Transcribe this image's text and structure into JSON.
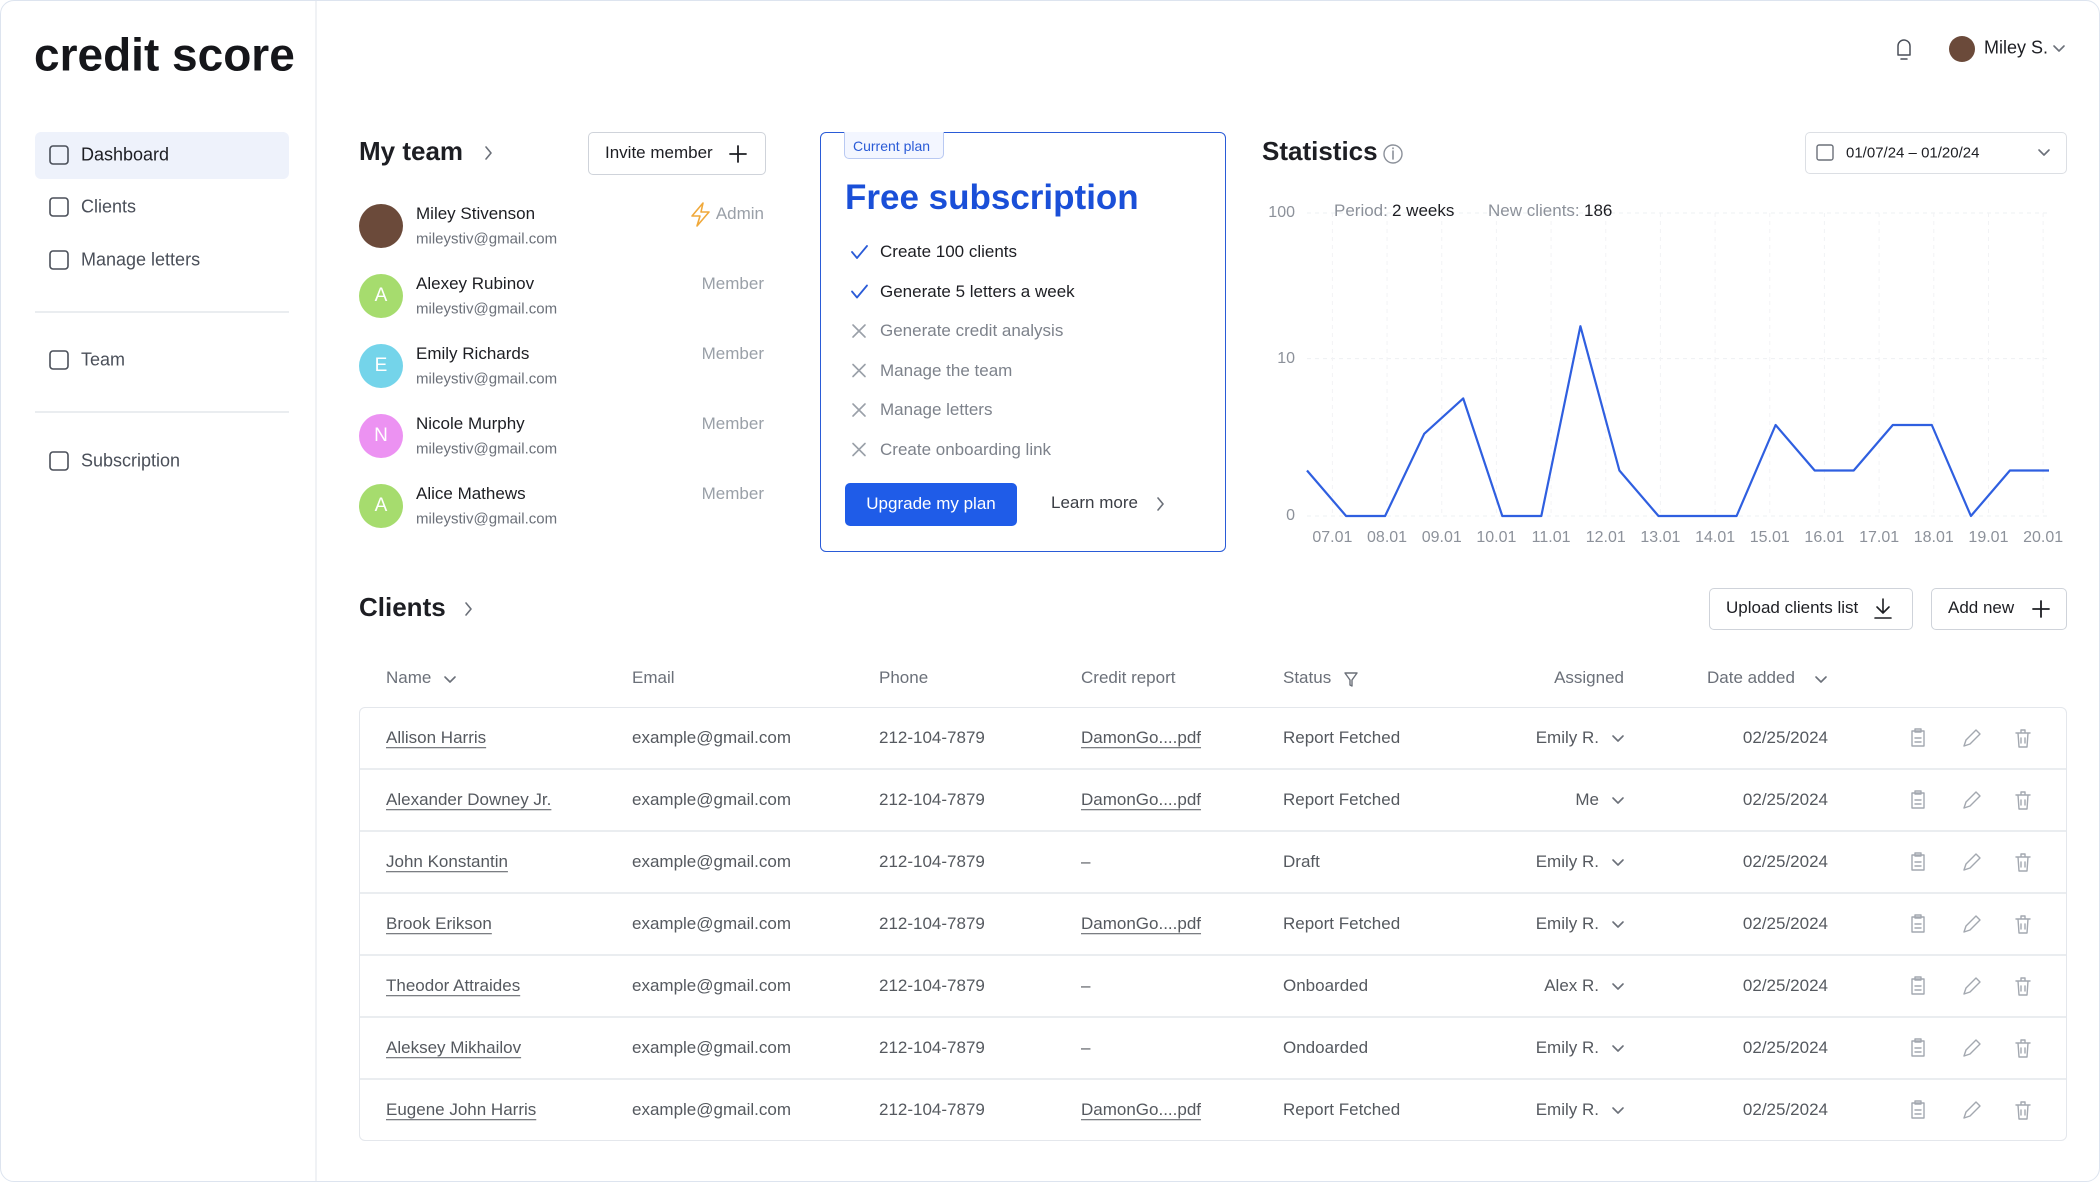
{
  "sidebar": {
    "logo": "credit score",
    "nav": [
      "Dashboard",
      "Clients",
      "Manage letters",
      "Team",
      "Subscription"
    ],
    "active": 0
  },
  "header": {
    "user": "Miley S."
  },
  "team": {
    "title": "My team",
    "invite": "Invite member",
    "members": [
      {
        "name": "Miley Stivenson",
        "email": "mileystiv@gmail.com",
        "role": "Admin",
        "avatar_color": "#6b4a3a"
      },
      {
        "name": "Alexey Rubinov",
        "email": "mileystiv@gmail.com",
        "role": "Member",
        "initial": "A",
        "avatar_color": "#a6dc6e"
      },
      {
        "name": "Emily Richards",
        "email": "mileystiv@gmail.com",
        "role": "Member",
        "initial": "E",
        "avatar_color": "#74d4ea"
      },
      {
        "name": "Nicole Murphy",
        "email": "mileystiv@gmail.com",
        "role": "Member",
        "initial": "N",
        "avatar_color": "#ec92f2"
      },
      {
        "name": "Alice Mathews",
        "email": "mileystiv@gmail.com",
        "role": "Member",
        "initial": "A",
        "avatar_color": "#a6dc6e"
      }
    ]
  },
  "plan": {
    "tag": "Current plan",
    "title": "Free subscription",
    "features": [
      {
        "text": "Create 100 clients",
        "included": true
      },
      {
        "text": "Generate 5 letters a week",
        "included": true
      },
      {
        "text": "Generate credit analysis",
        "included": false
      },
      {
        "text": "Manage the team",
        "included": false
      },
      {
        "text": "Manage letters",
        "included": false
      },
      {
        "text": "Create onboarding link",
        "included": false
      }
    ],
    "upgrade": "Upgrade my plan",
    "learn_more": "Learn more"
  },
  "chart_data": {
    "type": "line",
    "title": "Statistics",
    "date_range": "01/07/24 – 01/20/24",
    "period_label": "Period:",
    "period_value": "2 weeks",
    "new_clients_label": "New clients:",
    "new_clients_value": 186,
    "x": [
      0,
      1,
      2,
      3,
      4,
      5,
      6,
      7,
      8,
      9,
      10,
      11,
      12,
      13,
      14,
      15,
      16,
      17,
      18,
      19
    ],
    "values": [
      1,
      0,
      0,
      2.5,
      5,
      0,
      0,
      17,
      1,
      0,
      0,
      0,
      3,
      1,
      1,
      3,
      3,
      0,
      1,
      1
    ],
    "color": "#2f5fe0",
    "xlim": [
      0,
      19
    ],
    "xticks": [
      {
        "value": 0.65,
        "label": "07.01"
      },
      {
        "value": 2.05,
        "label": "08.01"
      },
      {
        "value": 3.45,
        "label": "09.01"
      },
      {
        "value": 4.85,
        "label": "10.01"
      },
      {
        "value": 6.25,
        "label": "11.01"
      },
      {
        "value": 7.65,
        "label": "12.01"
      },
      {
        "value": 9.05,
        "label": "13.01"
      },
      {
        "value": 10.45,
        "label": "14.01"
      },
      {
        "value": 11.85,
        "label": "15.01"
      },
      {
        "value": 13.25,
        "label": "16.01"
      },
      {
        "value": 14.65,
        "label": "17.01"
      },
      {
        "value": 16.05,
        "label": "18.01"
      },
      {
        "value": 17.45,
        "label": "19.01"
      },
      {
        "value": 18.85,
        "label": "20.01"
      }
    ],
    "ylim": [
      0,
      100
    ],
    "yticks": [
      0,
      10,
      100
    ],
    "yscale": "symlog",
    "grid": true
  },
  "clients": {
    "title": "Clients",
    "upload": "Upload clients list",
    "add": "Add new",
    "columns": [
      "Name",
      "Email",
      "Phone",
      "Credit report",
      "Status",
      "Assigned",
      "Date added"
    ],
    "rows": [
      [
        "Allison Harris",
        "example@gmail.com",
        "212-104-7879",
        "DamonGo....pdf",
        "Report Fetched",
        "Emily R.",
        "02/25/2024"
      ],
      [
        "Alexander Downey Jr.",
        "example@gmail.com",
        "212-104-7879",
        "DamonGo....pdf",
        "Report Fetched",
        "Me",
        "02/25/2024"
      ],
      [
        "John Konstantin",
        "example@gmail.com",
        "212-104-7879",
        "–",
        "Draft",
        "Emily R.",
        "02/25/2024"
      ],
      [
        "Brook Erikson",
        "example@gmail.com",
        "212-104-7879",
        "DamonGo....pdf",
        "Report Fetched",
        "Emily R.",
        "02/25/2024"
      ],
      [
        "Theodor Attraides",
        "example@gmail.com",
        "212-104-7879",
        "–",
        "Onboarded",
        "Alex R.",
        "02/25/2024"
      ],
      [
        "Aleksey Mikhailov",
        "example@gmail.com",
        "212-104-7879",
        "–",
        "Ondoarded",
        "Emily R.",
        "02/25/2024"
      ],
      [
        "Eugene John Harris",
        "example@gmail.com",
        "212-104-7879",
        "DamonGo....pdf",
        "Report Fetched",
        "Emily R.",
        "02/25/2024"
      ]
    ]
  }
}
